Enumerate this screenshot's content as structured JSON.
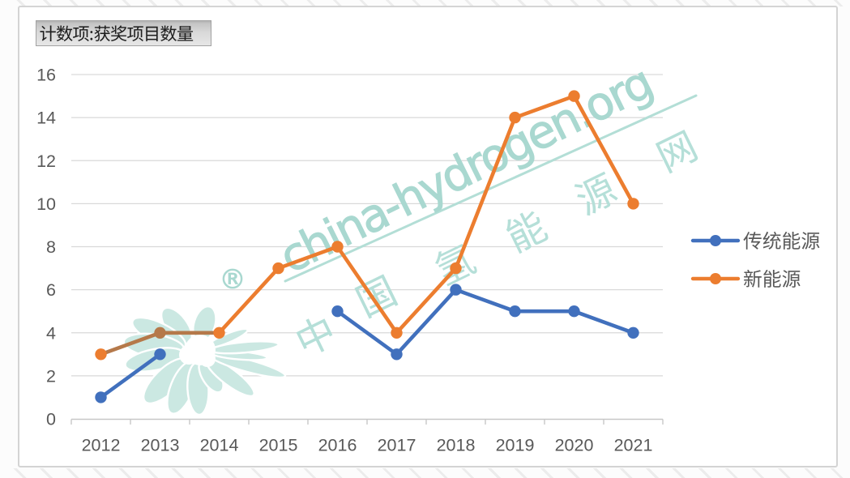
{
  "field_button": {
    "label": "计数项:获奖项目数量"
  },
  "chart_data": {
    "type": "line",
    "title": "计数项:获奖项目数量",
    "categories": [
      "2012",
      "2013",
      "2014",
      "2015",
      "2016",
      "2017",
      "2018",
      "2019",
      "2020",
      "2021"
    ],
    "series": [
      {
        "name": "传统能源",
        "color": "#4170BD",
        "values": [
          1,
          3,
          null,
          null,
          5,
          3,
          6,
          5,
          5,
          4
        ]
      },
      {
        "name": "新能源",
        "color": "#EC7D2F",
        "values": [
          3,
          4,
          4,
          7,
          8,
          4,
          7,
          14,
          15,
          10
        ]
      }
    ],
    "xlabel": "",
    "ylabel": "",
    "ylim": [
      0,
      16
    ],
    "yticks": [
      0,
      2,
      4,
      6,
      8,
      10,
      12,
      14,
      16
    ],
    "grid": true,
    "legend_position": "right"
  },
  "legend": {
    "items": [
      {
        "label": "传统能源",
        "color": "#4170BD"
      },
      {
        "label": "新能源",
        "color": "#EC7D2F"
      }
    ]
  },
  "watermark": {
    "latin_text": "china-hydrogen.org",
    "cjk_text": "中国氢能源网",
    "registered_mark": "®",
    "color_text": "#a9d8d0",
    "color_cjk": "#b5dfd8",
    "color_petals": "#cbe8e2",
    "color_line": "#b3ded6"
  },
  "colors": {
    "grid": "#d9d9d9",
    "axis": "#c7c7c7",
    "tick_label": "#595959",
    "legend_label": "#595959",
    "series_blue": "#4170BD",
    "series_orange": "#EC7D2F",
    "series_orange_muddy": "#b5794a",
    "chart_bg": "#ffffff",
    "page_bg": "#fcfcfc",
    "frame_border": "#d4d4d4",
    "button_text": "#1f1f1f"
  }
}
